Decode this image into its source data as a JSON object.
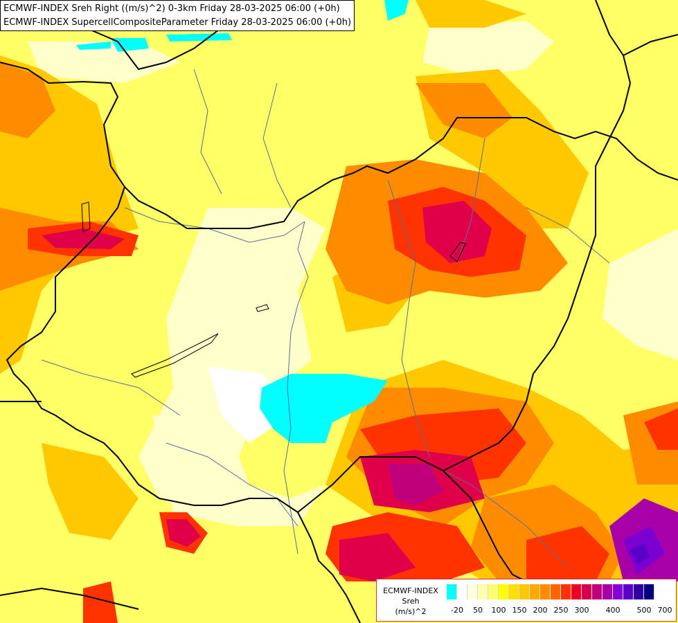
{
  "title": {
    "line1": "ECMWF-INDEX Sreh Right ((m/s)^2) 0-3km Friday 28-03-2025 06:00 (+0h)",
    "line2": "ECMWF-INDEX SupercellCompositeParameter Friday 28-03-2025 06:00 (+0h)"
  },
  "legend": {
    "line1": "ECMWF-INDEX",
    "line2": "Sreh",
    "line3": "(m/s)^2",
    "colors": [
      "#00ffff",
      "#ffffff",
      "#ffffe0",
      "#ffffb0",
      "#ffff70",
      "#ffff00",
      "#ffe000",
      "#ffc800",
      "#ffaa00",
      "#ff8c00",
      "#ff6600",
      "#ff3300",
      "#ee0022",
      "#d4004c",
      "#c0007a",
      "#a800a8",
      "#8800d8",
      "#5a00c8",
      "#3000a0",
      "#000080"
    ],
    "ticks": [
      "-20",
      "50",
      "100",
      "150",
      "200",
      "250",
      "300",
      "400",
      "500",
      "700"
    ]
  },
  "colors": {
    "background": "#ffff70",
    "cyan": "#00ffff",
    "border": "#000000",
    "river": "#5a6e96"
  }
}
